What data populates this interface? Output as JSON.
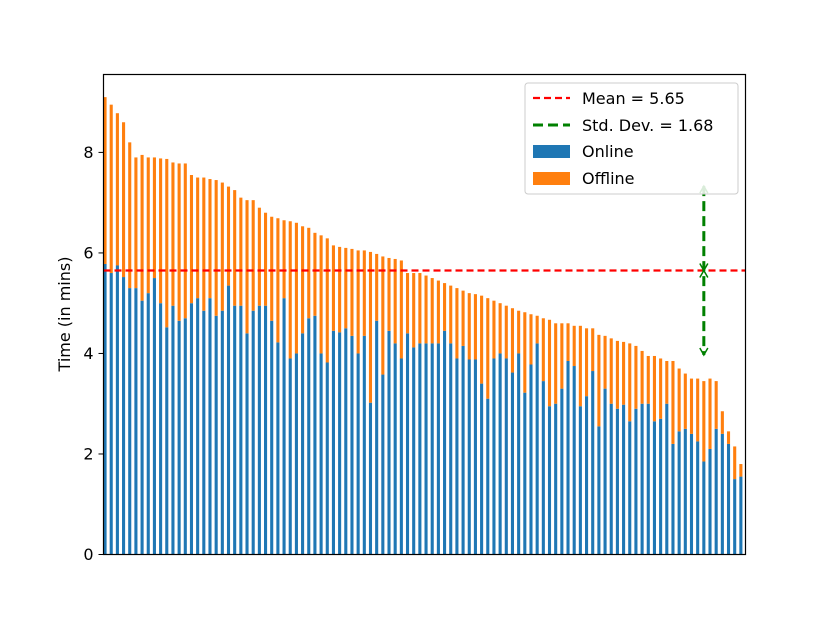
{
  "chart_data": {
    "type": "bar",
    "stacked": true,
    "title": "",
    "xlabel": "",
    "ylabel": "Time (in mins)",
    "ylim": [
      0,
      9.55
    ],
    "yticks": [
      "0",
      "2",
      "4",
      "6",
      "8"
    ],
    "xticks_visible": false,
    "legend_position": "top-right",
    "colors": {
      "online": "#1f77b4",
      "offline": "#ff7f0e",
      "mean": "#ff0000",
      "std": "#008000"
    },
    "mean": {
      "label": "Mean = 5.65",
      "value": 5.65
    },
    "std": {
      "label": "Std. Dev. = 1.68",
      "value": 1.68,
      "bar_index": 97
    },
    "series": [
      {
        "name": "Online",
        "values": [
          5.78,
          5.6,
          5.75,
          5.52,
          5.3,
          5.3,
          5.05,
          5.2,
          5.5,
          5.0,
          4.52,
          4.95,
          4.65,
          4.7,
          5.0,
          5.1,
          4.85,
          5.1,
          4.75,
          4.85,
          5.35,
          4.95,
          4.95,
          4.4,
          4.85,
          4.95,
          4.95,
          4.65,
          4.22,
          5.1,
          3.9,
          4.0,
          4.4,
          4.7,
          4.75,
          4.0,
          3.82,
          4.45,
          4.42,
          4.5,
          4.35,
          4.0,
          4.35,
          3.02,
          4.65,
          3.58,
          4.45,
          4.2,
          3.9,
          4.4,
          4.12,
          4.2,
          4.2,
          4.2,
          4.2,
          4.45,
          4.2,
          3.9,
          4.15,
          3.88,
          3.88,
          3.4,
          3.1,
          3.9,
          4.0,
          3.9,
          3.62,
          4.0,
          3.22,
          3.78,
          4.2,
          3.45,
          2.95,
          3.0,
          3.3,
          3.85,
          3.75,
          2.95,
          3.15,
          3.65,
          2.55,
          3.3,
          3.0,
          2.9,
          2.98,
          2.65,
          2.9,
          3.0,
          3.0,
          2.65,
          2.7,
          3.0,
          2.2,
          2.45,
          2.5,
          2.4,
          2.25,
          1.85,
          2.1,
          2.5,
          2.4,
          2.2,
          1.5,
          1.55
        ]
      },
      {
        "name": "Offline",
        "values": [
          3.32,
          3.35,
          3.03,
          3.08,
          2.9,
          2.6,
          2.9,
          2.7,
          2.4,
          2.88,
          3.35,
          2.85,
          3.13,
          3.08,
          2.55,
          2.4,
          2.65,
          2.37,
          2.7,
          2.55,
          1.97,
          2.3,
          2.15,
          2.65,
          2.2,
          1.95,
          1.85,
          2.07,
          2.47,
          1.55,
          2.73,
          2.6,
          2.13,
          1.8,
          1.65,
          2.35,
          2.47,
          1.7,
          1.7,
          1.6,
          1.73,
          2.05,
          1.7,
          3.0,
          1.33,
          2.35,
          1.45,
          1.68,
          1.95,
          1.2,
          1.48,
          1.4,
          1.35,
          1.3,
          1.25,
          0.95,
          1.15,
          1.4,
          1.1,
          1.32,
          1.3,
          1.75,
          2.0,
          1.15,
          1.0,
          1.05,
          1.28,
          0.85,
          1.6,
          1.0,
          0.55,
          1.25,
          1.72,
          1.6,
          1.3,
          0.75,
          0.8,
          1.6,
          1.35,
          0.85,
          1.82,
          1.05,
          1.3,
          1.35,
          1.25,
          1.55,
          1.25,
          1.05,
          0.95,
          1.3,
          1.2,
          0.85,
          1.65,
          1.25,
          1.1,
          1.1,
          1.25,
          1.6,
          1.4,
          0.95,
          0.45,
          0.25,
          0.65,
          0.25
        ]
      }
    ]
  }
}
